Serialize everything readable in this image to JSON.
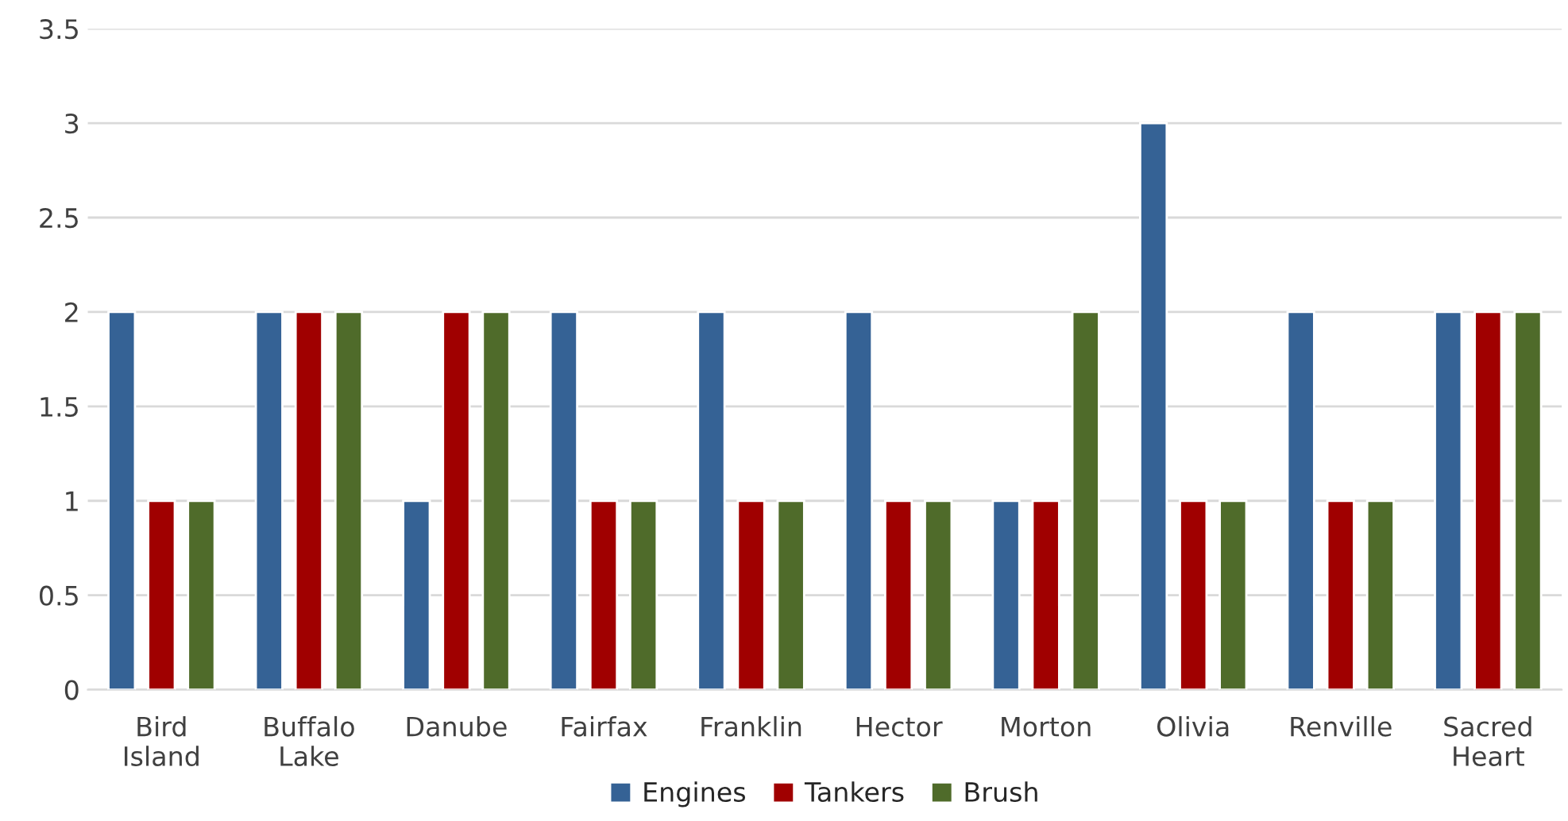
{
  "chart_data": {
    "type": "bar",
    "categories": [
      "Bird Island",
      "Buffalo Lake",
      "Danube",
      "Fairfax",
      "Franklin",
      "Hector",
      "Morton",
      "Olivia",
      "Renville",
      "Sacred Heart"
    ],
    "series": [
      {
        "name": "Engines",
        "color": "#356295",
        "values": [
          2,
          2,
          1,
          2,
          2,
          2,
          1,
          3,
          2,
          2
        ]
      },
      {
        "name": "Tankers",
        "color": "#a00000",
        "values": [
          1,
          2,
          2,
          1,
          1,
          1,
          1,
          1,
          1,
          2
        ]
      },
      {
        "name": "Brush",
        "color": "#4f6b2a",
        "values": [
          1,
          2,
          2,
          1,
          1,
          1,
          2,
          1,
          1,
          2
        ]
      }
    ],
    "ylim": [
      0,
      3.5
    ],
    "yticks": [
      0,
      0.5,
      1,
      1.5,
      2,
      2.5,
      3,
      3.5
    ],
    "grid": "y",
    "legend": "bottom"
  }
}
